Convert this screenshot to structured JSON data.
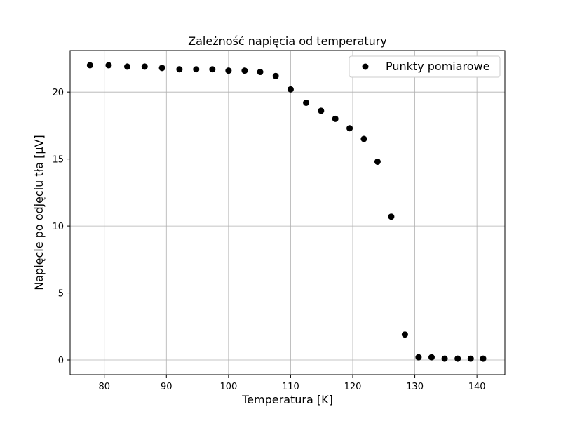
{
  "chart_data": {
    "type": "scatter",
    "title": "Zależność napięcia od temperatury",
    "xlabel": "Temperatura [K]",
    "ylabel": "Napięcie po odjęciu tła [μV]",
    "xlim": [
      74.5,
      144.5
    ],
    "ylim": [
      -1.1,
      23.1
    ],
    "xticks": [
      80,
      90,
      100,
      110,
      120,
      130,
      140
    ],
    "yticks": [
      0,
      5,
      10,
      15,
      20
    ],
    "grid": true,
    "legend_position": "top-right",
    "series": [
      {
        "name": "Punkty pomiarowe",
        "color": "#000000",
        "marker": "circle",
        "x": [
          77.7,
          80.7,
          83.7,
          86.5,
          89.3,
          92.1,
          94.8,
          97.4,
          100.0,
          102.6,
          105.1,
          107.6,
          110.0,
          112.5,
          114.9,
          117.2,
          119.5,
          121.8,
          124.0,
          126.2,
          128.4,
          130.6,
          132.7,
          134.8,
          136.9,
          139.0,
          141.0
        ],
        "y": [
          22.0,
          22.0,
          21.9,
          21.9,
          21.8,
          21.7,
          21.7,
          21.7,
          21.6,
          21.6,
          21.5,
          21.2,
          20.2,
          19.2,
          18.6,
          18.0,
          17.3,
          16.5,
          14.8,
          10.7,
          1.9,
          0.2,
          0.2,
          0.1,
          0.1,
          0.1,
          0.1
        ]
      }
    ]
  }
}
